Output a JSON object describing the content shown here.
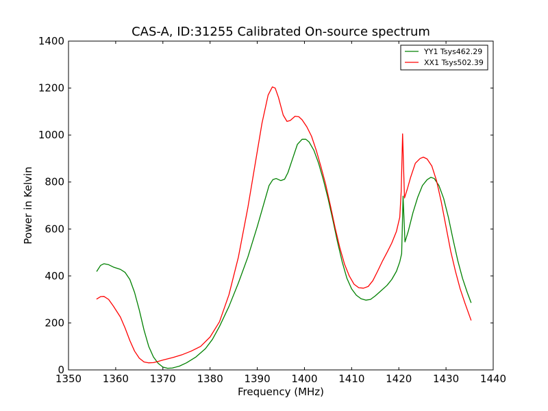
{
  "chart_data": {
    "type": "line",
    "title": "CAS-A, ID:31255 Calibrated On-source spectrum",
    "xlabel": "Frequency (MHz)",
    "ylabel": "Power in Kelvin",
    "xlim": [
      1350,
      1440
    ],
    "ylim": [
      0,
      1400
    ],
    "xticks": [
      1350,
      1360,
      1370,
      1380,
      1390,
      1400,
      1410,
      1420,
      1430,
      1440
    ],
    "yticks": [
      0,
      200,
      400,
      600,
      800,
      1000,
      1200,
      1400
    ],
    "grid": false,
    "legend_position": "top-right",
    "series": [
      {
        "name": "YY1 Tsys462.29",
        "color": "#008000",
        "points": [
          [
            1356.0,
            420
          ],
          [
            1356.8,
            445
          ],
          [
            1357.5,
            452
          ],
          [
            1358.5,
            448
          ],
          [
            1359.5,
            438
          ],
          [
            1361.0,
            428
          ],
          [
            1362.0,
            415
          ],
          [
            1363.0,
            385
          ],
          [
            1364.0,
            330
          ],
          [
            1365.0,
            255
          ],
          [
            1366.0,
            170
          ],
          [
            1367.0,
            100
          ],
          [
            1368.0,
            55
          ],
          [
            1369.0,
            28
          ],
          [
            1370.0,
            12
          ],
          [
            1371.0,
            7
          ],
          [
            1372.0,
            8
          ],
          [
            1373.5,
            16
          ],
          [
            1375.0,
            30
          ],
          [
            1377.0,
            55
          ],
          [
            1379.0,
            90
          ],
          [
            1380.5,
            130
          ],
          [
            1382.0,
            185
          ],
          [
            1384.0,
            270
          ],
          [
            1386.0,
            370
          ],
          [
            1388.0,
            480
          ],
          [
            1390.0,
            610
          ],
          [
            1391.5,
            715
          ],
          [
            1392.5,
            785
          ],
          [
            1393.3,
            810
          ],
          [
            1394.0,
            815
          ],
          [
            1395.0,
            806
          ],
          [
            1395.8,
            812
          ],
          [
            1396.5,
            840
          ],
          [
            1397.5,
            900
          ],
          [
            1398.5,
            960
          ],
          [
            1399.5,
            982
          ],
          [
            1400.3,
            982
          ],
          [
            1401.0,
            970
          ],
          [
            1402.0,
            935
          ],
          [
            1403.0,
            880
          ],
          [
            1404.0,
            810
          ],
          [
            1405.0,
            730
          ],
          [
            1406.0,
            640
          ],
          [
            1407.0,
            545
          ],
          [
            1408.0,
            460
          ],
          [
            1409.0,
            390
          ],
          [
            1410.0,
            345
          ],
          [
            1411.0,
            318
          ],
          [
            1412.0,
            303
          ],
          [
            1413.0,
            297
          ],
          [
            1414.0,
            300
          ],
          [
            1415.0,
            315
          ],
          [
            1416.0,
            333
          ],
          [
            1417.5,
            360
          ],
          [
            1418.5,
            385
          ],
          [
            1419.5,
            420
          ],
          [
            1420.2,
            460
          ],
          [
            1420.6,
            495
          ],
          [
            1420.9,
            740
          ],
          [
            1421.3,
            545
          ],
          [
            1422.0,
            590
          ],
          [
            1423.0,
            670
          ],
          [
            1424.0,
            735
          ],
          [
            1425.0,
            785
          ],
          [
            1426.0,
            810
          ],
          [
            1426.8,
            820
          ],
          [
            1427.5,
            815
          ],
          [
            1428.5,
            785
          ],
          [
            1429.5,
            730
          ],
          [
            1430.5,
            650
          ],
          [
            1431.5,
            555
          ],
          [
            1432.5,
            465
          ],
          [
            1433.5,
            390
          ],
          [
            1434.5,
            330
          ],
          [
            1435.3,
            287
          ]
        ]
      },
      {
        "name": "XX1 Tsys502.39",
        "color": "#ff0000",
        "points": [
          [
            1356.0,
            302
          ],
          [
            1356.8,
            312
          ],
          [
            1357.5,
            313
          ],
          [
            1358.5,
            300
          ],
          [
            1359.5,
            272
          ],
          [
            1361.0,
            225
          ],
          [
            1362.0,
            178
          ],
          [
            1363.0,
            125
          ],
          [
            1364.0,
            80
          ],
          [
            1365.0,
            50
          ],
          [
            1366.0,
            34
          ],
          [
            1367.0,
            30
          ],
          [
            1368.0,
            31
          ],
          [
            1369.0,
            36
          ],
          [
            1370.0,
            42
          ],
          [
            1372.0,
            52
          ],
          [
            1374.0,
            64
          ],
          [
            1376.0,
            80
          ],
          [
            1378.0,
            100
          ],
          [
            1380.0,
            140
          ],
          [
            1382.0,
            205
          ],
          [
            1384.0,
            320
          ],
          [
            1386.0,
            480
          ],
          [
            1388.0,
            690
          ],
          [
            1389.5,
            870
          ],
          [
            1391.0,
            1050
          ],
          [
            1392.3,
            1170
          ],
          [
            1393.2,
            1205
          ],
          [
            1393.8,
            1200
          ],
          [
            1394.5,
            1160
          ],
          [
            1395.5,
            1085
          ],
          [
            1396.3,
            1058
          ],
          [
            1397.0,
            1062
          ],
          [
            1398.0,
            1080
          ],
          [
            1398.8,
            1078
          ],
          [
            1399.5,
            1065
          ],
          [
            1400.5,
            1035
          ],
          [
            1401.5,
            995
          ],
          [
            1402.5,
            935
          ],
          [
            1403.5,
            865
          ],
          [
            1404.5,
            790
          ],
          [
            1405.5,
            700
          ],
          [
            1406.5,
            605
          ],
          [
            1407.5,
            520
          ],
          [
            1408.5,
            450
          ],
          [
            1409.5,
            400
          ],
          [
            1410.5,
            365
          ],
          [
            1411.5,
            350
          ],
          [
            1412.5,
            348
          ],
          [
            1413.5,
            355
          ],
          [
            1414.5,
            380
          ],
          [
            1415.5,
            420
          ],
          [
            1416.5,
            462
          ],
          [
            1417.5,
            500
          ],
          [
            1418.5,
            540
          ],
          [
            1419.5,
            590
          ],
          [
            1420.2,
            650
          ],
          [
            1420.5,
            760
          ],
          [
            1420.8,
            1005
          ],
          [
            1421.2,
            732
          ],
          [
            1421.8,
            770
          ],
          [
            1422.5,
            820
          ],
          [
            1423.5,
            880
          ],
          [
            1424.5,
            900
          ],
          [
            1425.2,
            906
          ],
          [
            1426.0,
            898
          ],
          [
            1427.0,
            868
          ],
          [
            1428.0,
            805
          ],
          [
            1429.0,
            715
          ],
          [
            1430.0,
            610
          ],
          [
            1431.0,
            505
          ],
          [
            1432.0,
            420
          ],
          [
            1433.0,
            345
          ],
          [
            1434.0,
            285
          ],
          [
            1435.3,
            212
          ]
        ]
      }
    ]
  }
}
